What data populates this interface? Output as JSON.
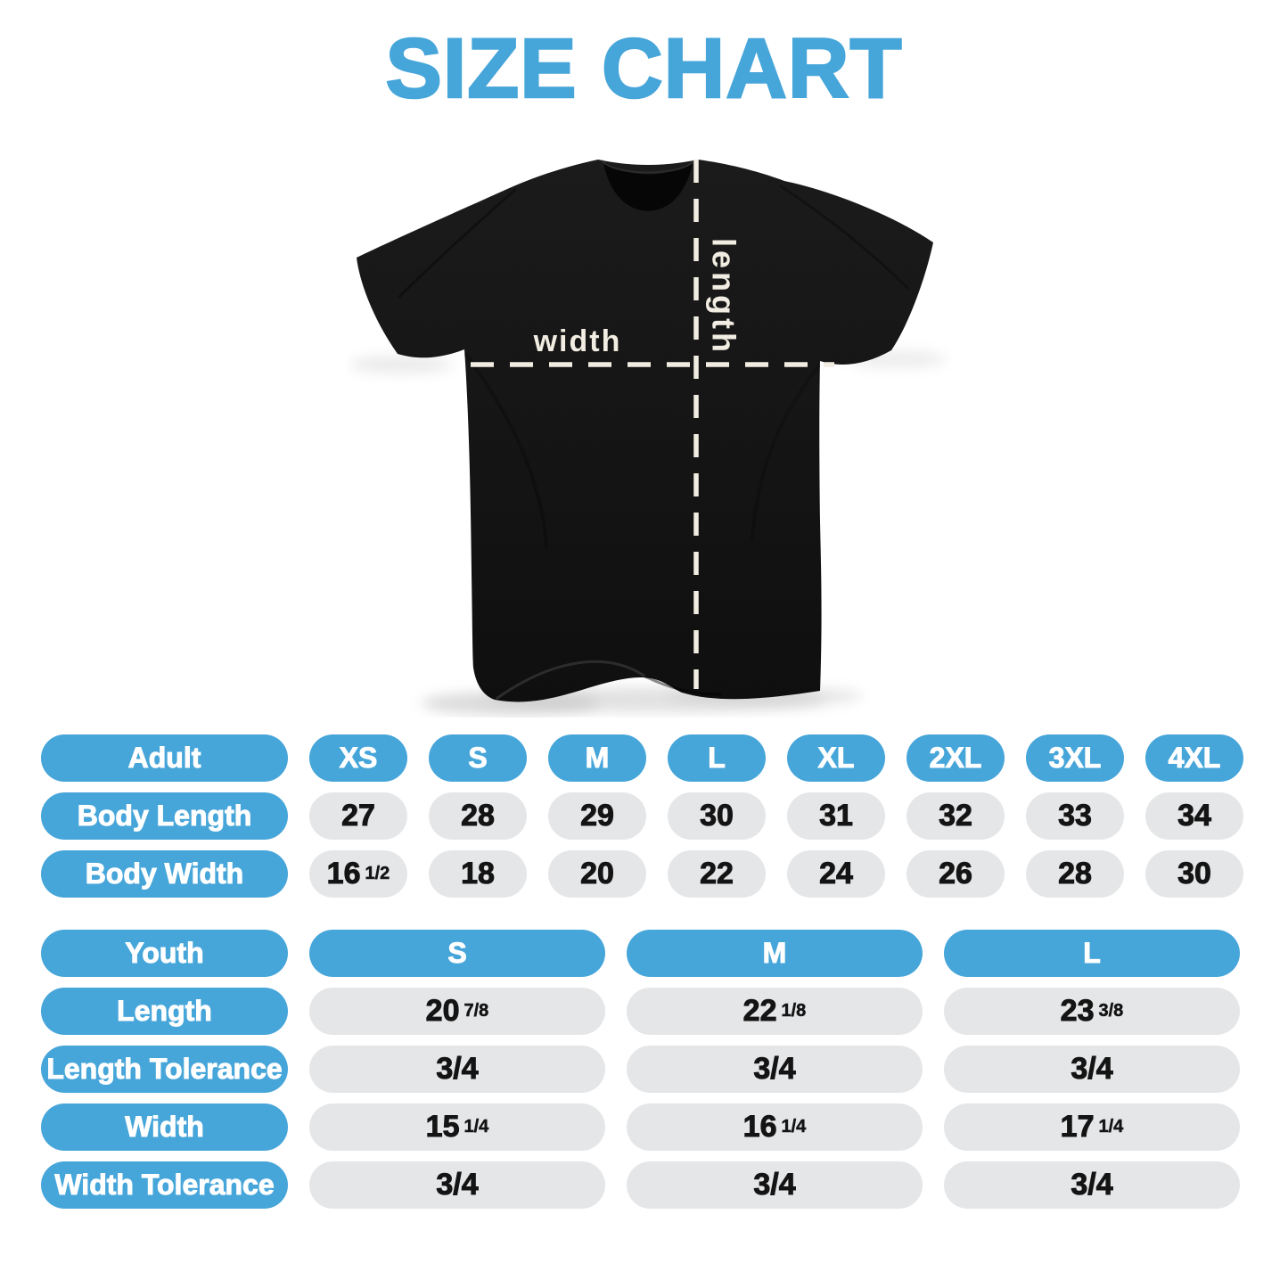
{
  "title": "SIZE CHART",
  "colors": {
    "accent_blue": "#46A5D9",
    "pill_gray": "#E5E6E8",
    "shirt_black": "#151515",
    "dash_cream": "#F2EDE2"
  },
  "shirt_diagram": {
    "width_label": "width",
    "length_label": "length"
  },
  "adult_table": {
    "header": [
      "Adult",
      "XS",
      "S",
      "M",
      "L",
      "XL",
      "2XL",
      "3XL",
      "4XL"
    ],
    "rows": [
      {
        "label": "Body Length",
        "values": [
          "27",
          "28",
          "29",
          "30",
          "31",
          "32",
          "33",
          "34"
        ]
      },
      {
        "label": "Body Width",
        "values": [
          "16 1/2",
          "18",
          "20",
          "22",
          "24",
          "26",
          "28",
          "30"
        ]
      }
    ]
  },
  "youth_table": {
    "header": [
      "Youth",
      "S",
      "M",
      "L"
    ],
    "rows": [
      {
        "label": "Length",
        "values": [
          "20 7/8",
          "22 1/8",
          "23 3/8"
        ]
      },
      {
        "label": "Length Tolerance",
        "values": [
          "3/4",
          "3/4",
          "3/4"
        ]
      },
      {
        "label": "Width",
        "values": [
          "15 1/4",
          "16 1/4",
          "17 1/4"
        ]
      },
      {
        "label": "Width Tolerance",
        "values": [
          "3/4",
          "3/4",
          "3/4"
        ]
      }
    ]
  }
}
